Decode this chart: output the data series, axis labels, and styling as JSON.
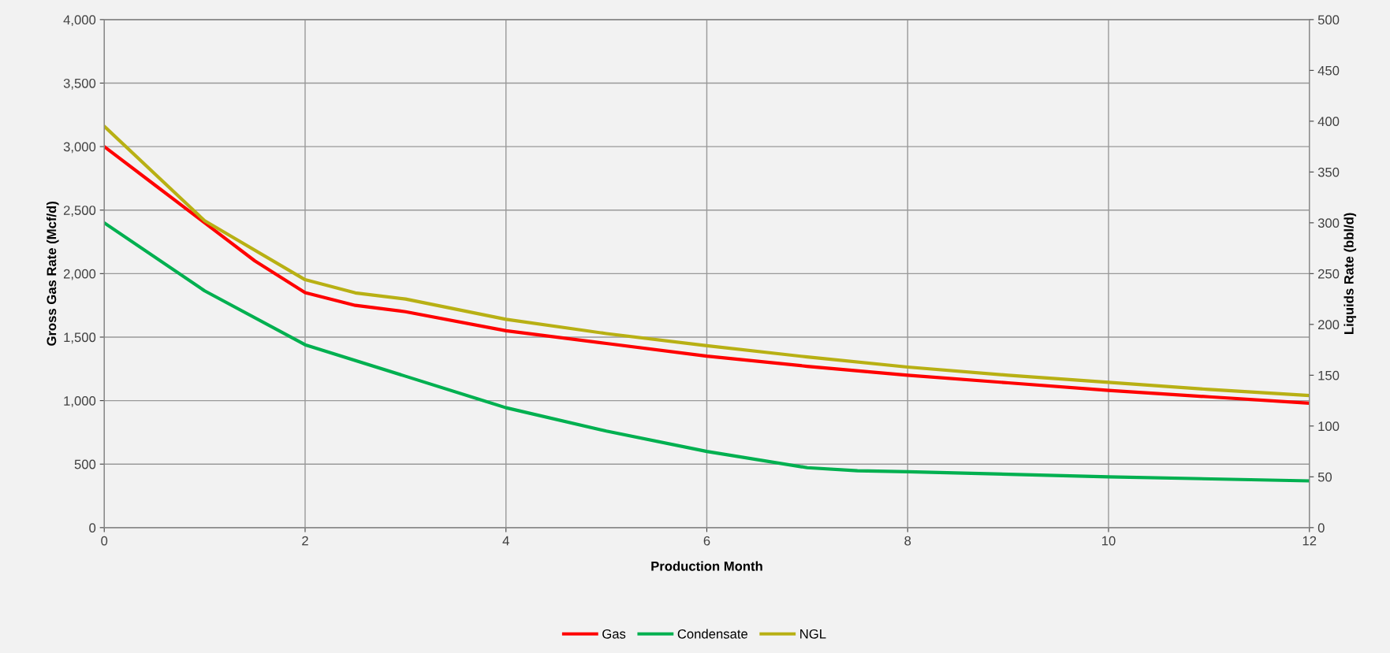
{
  "chart_data": {
    "type": "line",
    "xlabel": "Production Month",
    "ylabel": "Gross Gas Rate (Mcf/d)",
    "y2label": "Liquids Rate (bbl/d)",
    "xlim": [
      0,
      12
    ],
    "xticks": [
      0,
      2,
      4,
      6,
      8,
      10,
      12
    ],
    "ylim": [
      0,
      4000
    ],
    "yticks": [
      {
        "value": 0,
        "label": "0"
      },
      {
        "value": 500,
        "label": "500"
      },
      {
        "value": 1000,
        "label": "1,000"
      },
      {
        "value": 1500,
        "label": "1,500"
      },
      {
        "value": 2000,
        "label": "2,000"
      },
      {
        "value": 2500,
        "label": "2,500"
      },
      {
        "value": 3000,
        "label": "3,000"
      },
      {
        "value": 3500,
        "label": "3,500"
      },
      {
        "value": 4000,
        "label": "4,000"
      }
    ],
    "y2lim": [
      0,
      500
    ],
    "y2ticks": [
      0,
      50,
      100,
      150,
      200,
      250,
      300,
      350,
      400,
      450,
      500
    ],
    "grid": true,
    "legend": "bottom",
    "marker": "none",
    "line_style": "solid",
    "series": [
      {
        "name": "Gas",
        "color": "#ff0000",
        "x": [
          0,
          0.5,
          1,
          1.5,
          2,
          2.5,
          3,
          4,
          5,
          6,
          7,
          8,
          9,
          10,
          11,
          12
        ],
        "values": [
          3000,
          2700,
          2400,
          2100,
          1850,
          1750,
          1700,
          1550,
          1450,
          1350,
          1270,
          1200,
          1140,
          1080,
          1030,
          980
        ]
      },
      {
        "name": "Condensate",
        "color": "#00b050",
        "axis": "y2",
        "x": [
          0,
          1,
          2,
          3,
          4,
          5,
          6,
          7,
          7.5,
          8,
          10,
          12
        ],
        "values": [
          300,
          233,
          180,
          149,
          118,
          95,
          75,
          59,
          56,
          55,
          50,
          46
        ]
      },
      {
        "name": "NGL",
        "color": "#b8b014",
        "axis": "y2",
        "x": [
          0,
          1,
          2,
          2.5,
          3,
          4,
          5,
          6,
          7,
          8,
          9,
          10,
          11,
          12
        ],
        "values": [
          395,
          302,
          244,
          231,
          225,
          205,
          191,
          179,
          168,
          158,
          150,
          143,
          136,
          130
        ]
      }
    ]
  }
}
